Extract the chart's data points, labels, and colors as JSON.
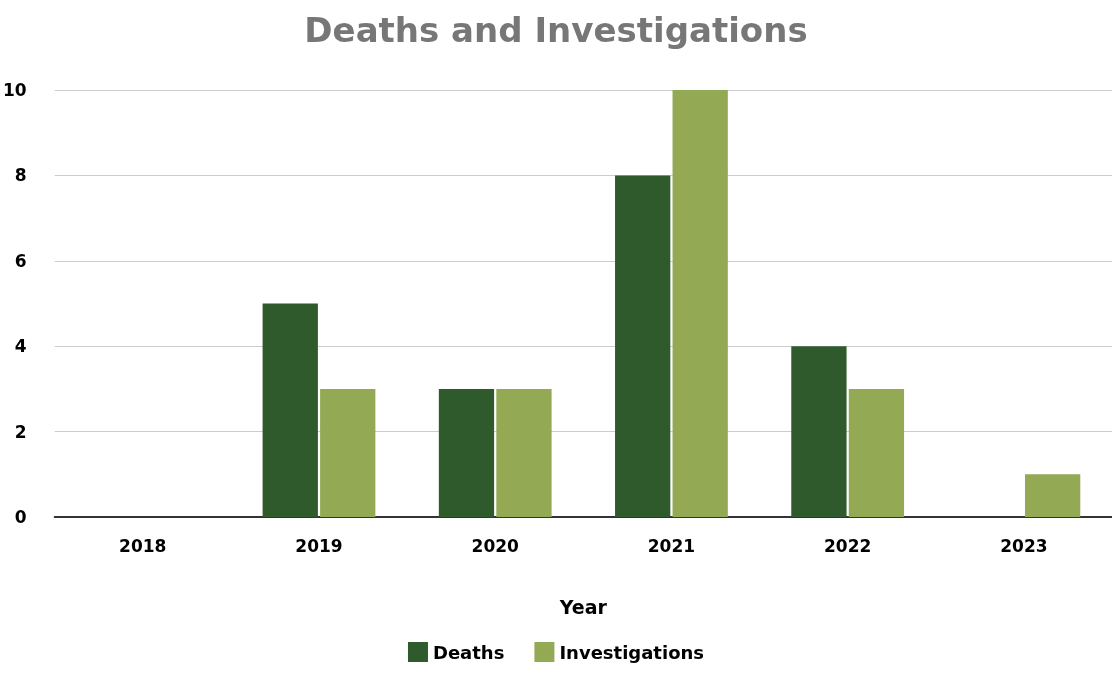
{
  "chart_data": {
    "type": "bar",
    "title": "Deaths and Investigations",
    "xlabel": "Year",
    "categories": [
      "2018",
      "2019",
      "2020",
      "2021",
      "2022",
      "2023"
    ],
    "series": [
      {
        "name": "Deaths",
        "color": "#2e5a2c",
        "values": [
          0,
          5,
          3,
          8,
          4,
          0
        ]
      },
      {
        "name": "Investigations",
        "color": "#93a953",
        "values": [
          0,
          3,
          3,
          10,
          3,
          1
        ]
      }
    ],
    "ylim": [
      0,
      10
    ],
    "yticks": [
      0,
      2,
      4,
      6,
      8,
      10
    ],
    "grid": "y",
    "legend": "bottom"
  }
}
